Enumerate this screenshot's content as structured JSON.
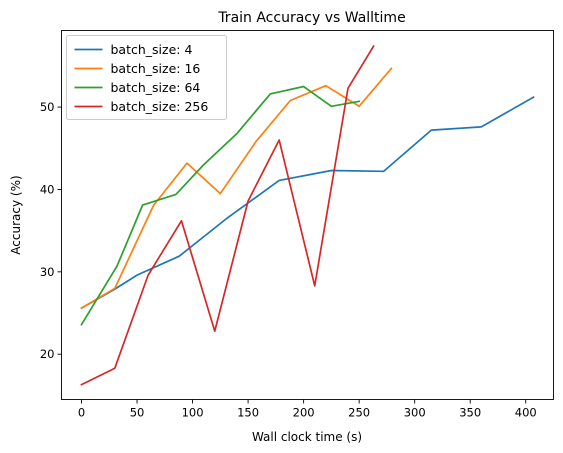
{
  "chart_data": {
    "type": "line",
    "title": "Train Accuracy vs Walltime",
    "xlabel": "Wall clock time (s)",
    "ylabel": "Accuracy (%)",
    "xlim": [
      -18,
      425
    ],
    "ylim": [
      14.5,
      59.3
    ],
    "xticks": [
      0,
      50,
      100,
      150,
      200,
      250,
      300,
      350,
      400
    ],
    "yticks": [
      20,
      30,
      40,
      50
    ],
    "grid": false,
    "legend_position": "top-left",
    "series": [
      {
        "name": "batch_size: 4",
        "color": "#1f77b4",
        "x": [
          0,
          30,
          50,
          88,
          130,
          178,
          225,
          272,
          315,
          360,
          407
        ],
        "y": [
          25.6,
          27.9,
          29.6,
          31.9,
          36.4,
          41.1,
          42.3,
          42.2,
          47.2,
          47.6,
          51.2
        ]
      },
      {
        "name": "batch_size: 16",
        "color": "#ff7f0e",
        "x": [
          0,
          30,
          65,
          95,
          125,
          157,
          188,
          220,
          250,
          279
        ],
        "y": [
          25.6,
          28.0,
          38.1,
          43.2,
          39.5,
          45.8,
          50.8,
          52.6,
          50.1,
          54.7
        ]
      },
      {
        "name": "batch_size: 64",
        "color": "#2ca02c",
        "x": [
          0,
          32,
          55,
          85,
          110,
          140,
          170,
          200,
          225,
          250
        ],
        "y": [
          23.6,
          30.7,
          38.1,
          39.4,
          43.0,
          46.8,
          51.6,
          52.5,
          50.1,
          50.7
        ]
      },
      {
        "name": "batch_size: 256",
        "color": "#d62728",
        "x": [
          0,
          30,
          60,
          90,
          120,
          150,
          178,
          210,
          240,
          263
        ],
        "y": [
          16.3,
          18.3,
          29.6,
          36.2,
          22.8,
          38.6,
          46.0,
          28.3,
          52.3,
          57.4
        ]
      }
    ]
  }
}
